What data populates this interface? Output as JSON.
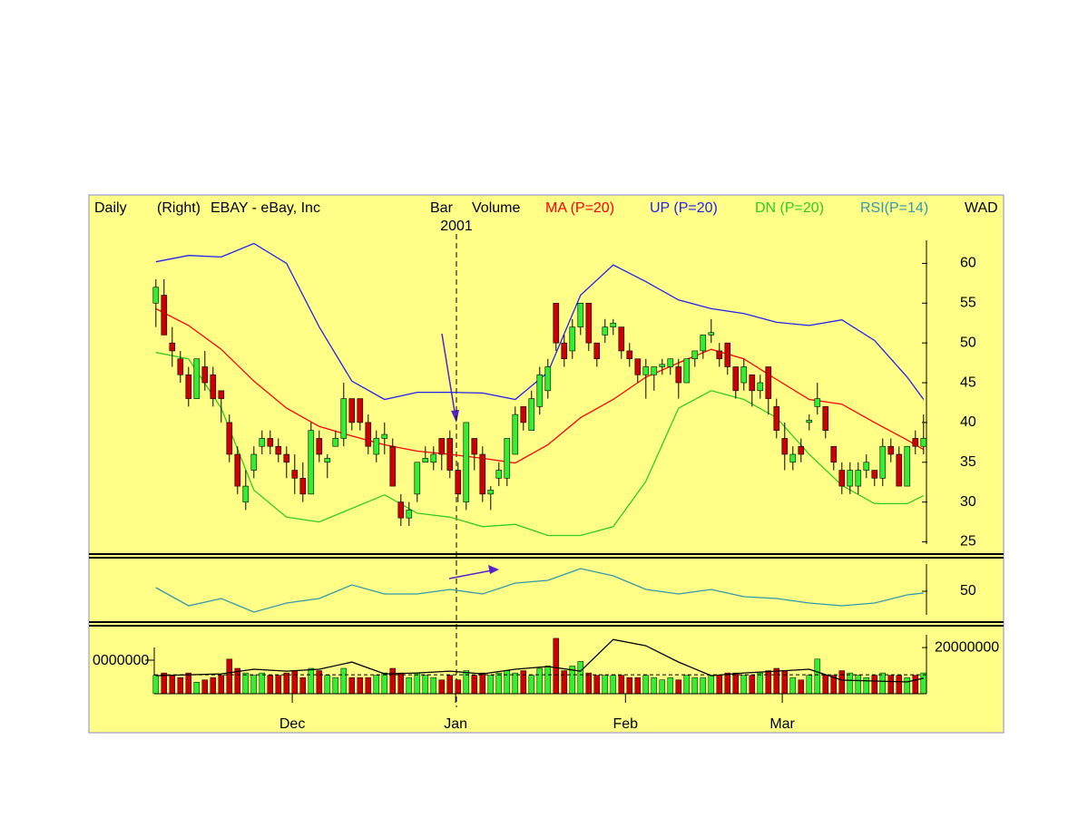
{
  "chart_data": [
    {
      "type": "candlestick",
      "labels": {
        "period": "Daily",
        "axis_side": "(Right)",
        "title": "EBAY - eBay, Inc",
        "bar": "Bar",
        "volume": "Volume",
        "wad": "WAD"
      },
      "year_label": "2001",
      "marker_x": 36.8,
      "xlim": [
        -8.2,
        103.8
      ],
      "ylim": [
        24.6,
        62.9
      ],
      "yticks": [
        25,
        30,
        35,
        40,
        45,
        50,
        55,
        60
      ],
      "up_color": "#33ee33",
      "down_color": "#cc0000",
      "open": [
        55,
        56,
        50,
        48,
        46,
        43,
        47,
        46,
        44,
        40,
        36,
        30,
        34,
        37,
        38,
        37,
        36,
        34,
        33,
        31,
        38,
        35,
        37,
        38,
        43,
        43,
        40,
        36,
        38,
        37,
        30,
        28,
        31,
        35,
        35,
        38,
        38,
        34,
        30,
        38,
        36,
        31,
        33,
        33,
        36,
        42,
        39,
        42,
        44,
        55,
        50,
        49,
        52,
        55,
        50,
        51,
        52,
        52,
        49,
        48,
        46,
        46,
        47,
        47,
        47,
        45,
        48,
        49,
        51,
        49,
        50,
        47,
        45,
        46,
        44,
        47,
        42,
        38,
        35,
        37,
        40,
        42,
        42,
        37,
        34,
        32,
        32,
        34,
        34,
        33,
        37,
        36,
        32,
        38,
        37
      ],
      "high": [
        58,
        58,
        52,
        49,
        47,
        48,
        49,
        47,
        44,
        41,
        37,
        34,
        37,
        39,
        39,
        38,
        37,
        36,
        35,
        40,
        39,
        36,
        39,
        45,
        43,
        43,
        41,
        39,
        40,
        38,
        31,
        30,
        35,
        37,
        37,
        38,
        39,
        35,
        40,
        38,
        37,
        32,
        35,
        38,
        42,
        42,
        44,
        47,
        48,
        55,
        51,
        53,
        55,
        55,
        50,
        53,
        53,
        52,
        50,
        48,
        48,
        47,
        48,
        48,
        48,
        48,
        49,
        51,
        53,
        50,
        50,
        47,
        48,
        46,
        46,
        47,
        43,
        40,
        37,
        38,
        41,
        45,
        42,
        37,
        35,
        35,
        35,
        36,
        34,
        38,
        38,
        37,
        37,
        39,
        41
      ],
      "low": [
        52,
        51,
        47,
        45,
        42,
        43,
        44,
        42,
        40,
        35,
        31,
        29,
        33,
        36,
        36,
        35,
        33,
        31,
        30,
        31,
        35,
        33,
        37,
        37,
        39,
        39,
        36,
        35,
        36,
        32,
        27,
        27,
        30,
        35,
        34,
        34,
        33,
        30,
        29,
        34,
        30,
        29,
        32,
        32,
        36,
        39,
        39,
        41,
        43,
        49,
        47,
        48,
        51,
        49,
        47,
        50,
        51,
        48,
        47,
        45,
        43,
        44,
        46,
        46,
        43,
        45,
        47,
        48,
        50,
        47,
        46,
        43,
        44,
        42,
        43,
        41,
        38,
        34,
        34,
        35,
        39,
        41,
        38,
        34,
        31,
        31,
        31,
        33,
        32,
        32,
        35,
        32,
        32,
        36,
        36
      ],
      "close": [
        57,
        51,
        49,
        46,
        43,
        48,
        45,
        43,
        43,
        36,
        32,
        32,
        36,
        38,
        37,
        36,
        35,
        33,
        31,
        39,
        36,
        35.5,
        38,
        43,
        40,
        40,
        37,
        38,
        38.5,
        32,
        28,
        29,
        35,
        35.5,
        36,
        36,
        34,
        31,
        40,
        36,
        31,
        31.5,
        34,
        38,
        41,
        40,
        43,
        46,
        47,
        50,
        48,
        52,
        55,
        50,
        48,
        52,
        52.5,
        49,
        48,
        46,
        47,
        47,
        47.3,
        48,
        45,
        48,
        49,
        51,
        51.3,
        48,
        47,
        44,
        47,
        44,
        45,
        43,
        39,
        36,
        36,
        36,
        40.3,
        43,
        39,
        35,
        32,
        34,
        34,
        35,
        33,
        37,
        36,
        32,
        37,
        37,
        38
      ],
      "series": [
        {
          "name": "MA (P=20)",
          "color": "#ff0000",
          "x": [
            0,
            4,
            8,
            12,
            16,
            20,
            24,
            28,
            32,
            36,
            40,
            44,
            48,
            52,
            56,
            60,
            64,
            68,
            72,
            76,
            80,
            84,
            88,
            92,
            94
          ],
          "values": [
            54.3,
            52.2,
            49.2,
            45.2,
            41.8,
            39.5,
            38.3,
            37.2,
            36.4,
            36,
            35.5,
            34.9,
            37.2,
            40.6,
            42.9,
            45.7,
            47.5,
            49.2,
            48,
            45.4,
            42.9,
            42.3,
            40,
            37.8,
            36.6
          ]
        },
        {
          "name": "UP (P=20)",
          "color": "#2222ee",
          "x": [
            0,
            4,
            8,
            12,
            16,
            20,
            24,
            28,
            32,
            36,
            40,
            44,
            48,
            52,
            56,
            60,
            64,
            68,
            72,
            76,
            80,
            84,
            88,
            92,
            94
          ],
          "values": [
            60.2,
            61,
            60.8,
            62.5,
            60,
            52,
            45.2,
            42.9,
            43.8,
            43.8,
            43.7,
            42.9,
            46.3,
            56,
            59.8,
            57.7,
            55.4,
            54.3,
            53.7,
            52.6,
            52.2,
            52.9,
            50.3,
            45.7,
            42.9
          ]
        },
        {
          "name": "DN (P=20)",
          "color": "#33cc22",
          "x": [
            0,
            4,
            8,
            12,
            16,
            20,
            24,
            28,
            32,
            36,
            40,
            44,
            48,
            52,
            56,
            60,
            64,
            68,
            72,
            76,
            80,
            84,
            88,
            92,
            94
          ],
          "values": [
            48.8,
            48,
            41.8,
            31.5,
            28.1,
            27.5,
            29.2,
            30.9,
            28.6,
            28.1,
            26.9,
            27.2,
            25.8,
            25.8,
            26.9,
            32.6,
            41.8,
            44,
            42.9,
            40.6,
            36,
            32.1,
            29.8,
            29.8,
            30.8
          ]
        }
      ]
    },
    {
      "type": "line",
      "xlim": [
        -8.2,
        103.8
      ],
      "ylim": [
        14,
        84
      ],
      "yticks": [
        50
      ],
      "series": [
        {
          "name": "RSI(P=14)",
          "color": "#3399aa",
          "x": [
            0,
            4,
            8,
            12,
            16,
            20,
            24,
            28,
            32,
            36,
            40,
            44,
            48,
            52,
            56,
            60,
            64,
            68,
            72,
            76,
            80,
            84,
            88,
            92,
            94
          ],
          "values": [
            54,
            34,
            42,
            27,
            37,
            42,
            57,
            47,
            47,
            52,
            47,
            59,
            62,
            75,
            67,
            52,
            47,
            52,
            44,
            42,
            37,
            34,
            37,
            46,
            48
          ]
        }
      ]
    },
    {
      "type": "bar",
      "xlim": [
        -8.2,
        103.8
      ],
      "ylim": [
        0,
        27500000
      ],
      "yticks": [
        20000000
      ],
      "left_label": "0000000",
      "xticks": [
        {
          "value": 16.7,
          "label": "Dec"
        },
        {
          "value": 36.7,
          "label": "Jan"
        },
        {
          "value": 57.5,
          "label": "Feb"
        },
        {
          "value": 76.7,
          "label": "Mar"
        }
      ],
      "up_color": "#33ee33",
      "down_color": "#cc0000",
      "values": [
        8000000,
        9000000,
        8000000,
        7000000,
        9000000,
        5000000,
        6000000,
        7000000,
        8000000,
        15000000,
        11000000,
        9000000,
        8000000,
        9000000,
        8000000,
        8000000,
        9000000,
        10000000,
        7000000,
        11000000,
        10000000,
        8000000,
        7000000,
        11000000,
        7000000,
        7000000,
        7000000,
        8000000,
        9000000,
        11000000,
        9000000,
        7000000,
        9000000,
        8000000,
        7000000,
        6000000,
        8000000,
        6000000,
        10000000,
        8000000,
        9000000,
        8000000,
        9000000,
        10000000,
        9000000,
        10000000,
        8000000,
        11000000,
        12000000,
        24000000,
        10000000,
        12000000,
        14000000,
        9000000,
        8000000,
        8000000,
        8000000,
        8000000,
        7000000,
        7000000,
        8000000,
        7000000,
        6000000,
        7000000,
        6000000,
        8000000,
        7000000,
        7000000,
        8000000,
        8000000,
        9000000,
        9000000,
        8000000,
        8000000,
        9000000,
        10000000,
        11000000,
        10000000,
        7000000,
        6000000,
        8000000,
        15000000,
        8000000,
        8000000,
        10000000,
        9000000,
        8000000,
        7000000,
        8000000,
        9000000,
        8000000,
        8000000,
        7000000,
        8000000,
        9000000
      ],
      "average": 8200000,
      "avg_line": {
        "color": "#000000",
        "x": [
          0,
          4,
          8,
          12,
          16,
          20,
          24,
          28,
          32,
          36,
          40,
          44,
          48,
          52,
          56,
          60,
          64,
          68,
          72,
          76,
          80,
          84,
          88,
          92,
          94
        ],
        "values": [
          7800000,
          8200000,
          8600000,
          10600000,
          9800000,
          10600000,
          13700000,
          8600000,
          9000000,
          9800000,
          8600000,
          10600000,
          11800000,
          9800000,
          23500000,
          20800000,
          13700000,
          7800000,
          9000000,
          9800000,
          10600000,
          5900000,
          5500000,
          5100000,
          6700000
        ]
      }
    }
  ]
}
